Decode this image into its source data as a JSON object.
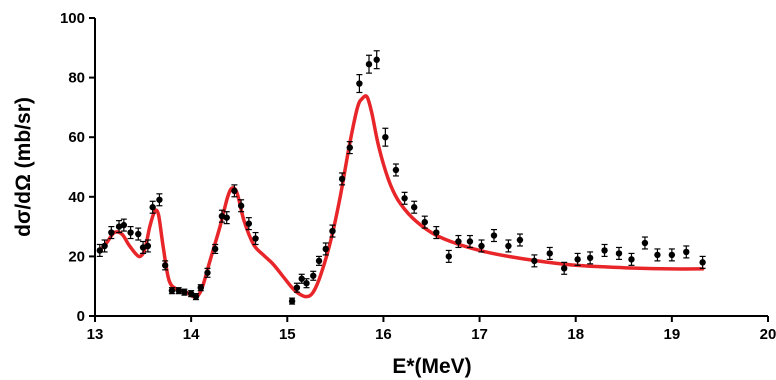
{
  "chart_data": {
    "type": "scatter",
    "title": "",
    "xlabel": "E*(MeV)",
    "ylabel": "dσ/dΩ (mb/sr)",
    "xlim": [
      13,
      20
    ],
    "ylim": [
      0,
      100
    ],
    "xticks": [
      "13",
      "14",
      "15",
      "16",
      "17",
      "18",
      "19",
      "20"
    ],
    "yticks": [
      "0",
      "20",
      "40",
      "60",
      "80",
      "100"
    ],
    "grid": false,
    "legend": "none",
    "colors": {
      "data_points": "#000000",
      "fit_curve": "#e8262a"
    },
    "series": [
      {
        "kind": "points-with-error-bars",
        "points": [
          [
            13.05,
            22,
            2
          ],
          [
            13.1,
            23.5,
            2
          ],
          [
            13.17,
            28,
            2
          ],
          [
            13.25,
            30,
            2
          ],
          [
            13.3,
            30.5,
            2
          ],
          [
            13.37,
            28,
            2
          ],
          [
            13.45,
            27.5,
            2
          ],
          [
            13.5,
            23,
            2
          ],
          [
            13.55,
            23.5,
            2
          ],
          [
            13.6,
            36.5,
            2
          ],
          [
            13.67,
            39,
            2
          ],
          [
            13.73,
            17,
            1.5
          ],
          [
            13.8,
            8.5,
            1
          ],
          [
            13.87,
            8.5,
            1
          ],
          [
            13.93,
            8,
            1
          ],
          [
            14.0,
            7.5,
            1
          ],
          [
            14.05,
            6.5,
            1
          ],
          [
            14.1,
            9.5,
            1
          ],
          [
            14.17,
            14.5,
            1.5
          ],
          [
            14.25,
            22.5,
            1.5
          ],
          [
            14.32,
            33.5,
            2
          ],
          [
            14.37,
            33,
            2
          ],
          [
            14.45,
            42,
            2
          ],
          [
            14.52,
            37,
            2
          ],
          [
            14.6,
            31,
            2
          ],
          [
            14.67,
            26,
            2
          ],
          [
            15.05,
            5,
            1
          ],
          [
            15.1,
            9.5,
            1.5
          ],
          [
            15.15,
            12.5,
            1.5
          ],
          [
            15.2,
            11,
            1.5
          ],
          [
            15.27,
            13.5,
            1.5
          ],
          [
            15.33,
            18.5,
            1.5
          ],
          [
            15.4,
            22.5,
            2
          ],
          [
            15.47,
            28.5,
            2
          ],
          [
            15.57,
            46,
            2
          ],
          [
            15.65,
            56.5,
            2
          ],
          [
            15.75,
            78,
            3
          ],
          [
            15.85,
            84.5,
            3
          ],
          [
            15.93,
            86,
            3
          ],
          [
            16.02,
            60,
            3
          ],
          [
            16.13,
            49,
            2
          ],
          [
            16.22,
            39.5,
            2
          ],
          [
            16.32,
            36.5,
            2
          ],
          [
            16.43,
            31.5,
            2
          ],
          [
            16.55,
            28,
            2
          ],
          [
            16.68,
            20,
            2
          ],
          [
            16.78,
            25,
            2
          ],
          [
            16.9,
            25,
            2
          ],
          [
            17.02,
            23.5,
            2
          ],
          [
            17.15,
            27,
            2
          ],
          [
            17.3,
            23.5,
            2
          ],
          [
            17.42,
            25.5,
            2
          ],
          [
            17.57,
            18.5,
            2
          ],
          [
            17.73,
            21,
            2
          ],
          [
            17.88,
            16,
            2
          ],
          [
            18.02,
            19,
            2
          ],
          [
            18.15,
            19.5,
            2
          ],
          [
            18.3,
            22,
            2
          ],
          [
            18.45,
            21,
            2
          ],
          [
            18.58,
            19,
            2
          ],
          [
            18.72,
            24.5,
            2
          ],
          [
            18.85,
            20.5,
            2
          ],
          [
            19.0,
            20.5,
            2
          ],
          [
            19.15,
            21.5,
            2
          ],
          [
            19.32,
            18,
            2
          ]
        ]
      },
      {
        "kind": "fit-curve",
        "points": [
          [
            13.05,
            22
          ],
          [
            13.12,
            24.5
          ],
          [
            13.2,
            28
          ],
          [
            13.28,
            27.5
          ],
          [
            13.35,
            24
          ],
          [
            13.42,
            21
          ],
          [
            13.47,
            20
          ],
          [
            13.52,
            22.5
          ],
          [
            13.57,
            30
          ],
          [
            13.62,
            35
          ],
          [
            13.66,
            34
          ],
          [
            13.71,
            23
          ],
          [
            13.77,
            12
          ],
          [
            13.85,
            9
          ],
          [
            13.95,
            8
          ],
          [
            14.02,
            6.5
          ],
          [
            14.07,
            6.8
          ],
          [
            14.12,
            10
          ],
          [
            14.2,
            19
          ],
          [
            14.3,
            30
          ],
          [
            14.38,
            40
          ],
          [
            14.43,
            43
          ],
          [
            14.48,
            41
          ],
          [
            14.55,
            32
          ],
          [
            14.65,
            24
          ],
          [
            14.75,
            20.5
          ],
          [
            14.85,
            17.5
          ],
          [
            14.95,
            13.5
          ],
          [
            15.05,
            9.5
          ],
          [
            15.12,
            7.5
          ],
          [
            15.2,
            6.5
          ],
          [
            15.27,
            8
          ],
          [
            15.35,
            14
          ],
          [
            15.45,
            25
          ],
          [
            15.55,
            40
          ],
          [
            15.65,
            58
          ],
          [
            15.73,
            70
          ],
          [
            15.78,
            73
          ],
          [
            15.83,
            73.5
          ],
          [
            15.88,
            68
          ],
          [
            15.95,
            57
          ],
          [
            16.05,
            46
          ],
          [
            16.15,
            39
          ],
          [
            16.3,
            33
          ],
          [
            16.5,
            28
          ],
          [
            16.7,
            25
          ],
          [
            17.0,
            22
          ],
          [
            17.3,
            20
          ],
          [
            17.6,
            18.5
          ],
          [
            18.0,
            17
          ],
          [
            18.5,
            16.2
          ],
          [
            19.0,
            15.8
          ],
          [
            19.32,
            15.8
          ]
        ]
      }
    ]
  }
}
